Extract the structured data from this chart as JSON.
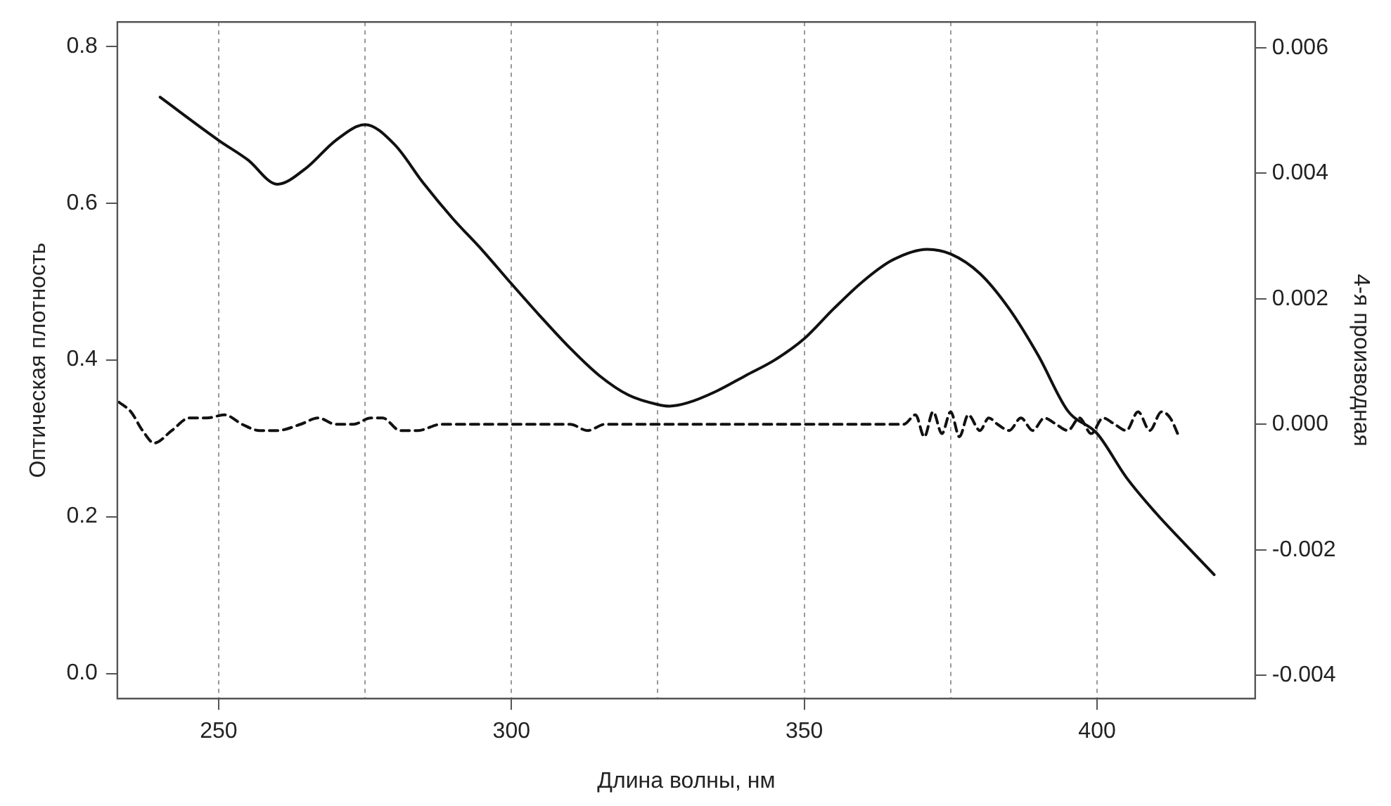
{
  "chart_data": {
    "type": "line",
    "xlabel": "Длина волны, нм",
    "ylabel": "Оптическая плотность",
    "y2label": "4-я производная",
    "xlim": [
      232.7,
      427
    ],
    "xticks": [
      250,
      {
        "value": 275,
        "label": null
      },
      300,
      {
        "value": 325,
        "label": null
      },
      350,
      {
        "value": 375,
        "label": null
      },
      400
    ],
    "ylim": [
      -0.032,
      0.831
    ],
    "yticks": [
      {
        "value": 0,
        "label": "0.0"
      },
      0.2,
      0.4,
      0.6,
      0.8
    ],
    "y2lim": [
      -0.00437,
      0.00641
    ],
    "y2ticks": [
      -0.004,
      -0.002,
      {
        "value": 0,
        "label": "0.000"
      },
      0.002,
      0.004,
      0.006
    ],
    "grid": "x",
    "legend": false,
    "marker": "none",
    "series": [
      {
        "color": "#111111",
        "line_style": "solid",
        "x": [
          240,
          250,
          255,
          260,
          265,
          270,
          275,
          280,
          285,
          290,
          295,
          300,
          305,
          310,
          315,
          320,
          325,
          327,
          330,
          335,
          340,
          345,
          350,
          355,
          360,
          365,
          371,
          375,
          380,
          385,
          390,
          395,
          400,
          405,
          410,
          415,
          420
        ],
        "values": [
          0.735,
          0.68,
          0.655,
          0.624,
          0.645,
          0.68,
          0.7,
          0.675,
          0.625,
          0.58,
          0.54,
          0.497,
          0.455,
          0.415,
          0.38,
          0.355,
          0.343,
          0.341,
          0.345,
          0.36,
          0.38,
          0.4,
          0.427,
          0.465,
          0.5,
          0.527,
          0.541,
          0.535,
          0.51,
          0.465,
          0.405,
          0.335,
          0.306,
          0.25,
          0.205,
          0.165,
          0.126
        ]
      },
      {
        "color": "#111111",
        "line_style": "dashed",
        "axis": "y2",
        "x": [
          233,
          235,
          237,
          239,
          242,
          245,
          248,
          251,
          254,
          257,
          260,
          264,
          267,
          270,
          273,
          276,
          278,
          281,
          284,
          288,
          292,
          297,
          302,
          306,
          310,
          313,
          316,
          320,
          325,
          330,
          340,
          350,
          360,
          365,
          367,
          369,
          370.5,
          372,
          373.5,
          375,
          376.5,
          378,
          380,
          381.5,
          383,
          385,
          387,
          389,
          391,
          393,
          395,
          397,
          399,
          401,
          403,
          405,
          407,
          409,
          411,
          412.5,
          414
        ],
        "values": [
          0.00035,
          0.0002,
          -0.0001,
          -0.0003,
          -0.0001,
          0.0001,
          0.0001,
          0.00015,
          0,
          -0.0001,
          -0.0001,
          0,
          0.0001,
          0,
          0,
          0.0001,
          0.0001,
          -0.0001,
          -0.0001,
          0,
          0,
          0,
          0,
          0,
          0,
          -0.0001,
          0,
          0,
          0,
          0,
          0,
          0,
          0,
          0,
          0,
          0.00015,
          -0.0002,
          0.0002,
          -0.00015,
          0.0002,
          -0.0002,
          0.00015,
          -0.0001,
          0.0001,
          0,
          -0.0001,
          0.0001,
          -0.0001,
          0.0001,
          0,
          -0.0001,
          0.0001,
          -0.00015,
          0.0001,
          0,
          -0.0001,
          0.0002,
          -0.0001,
          0.0002,
          0.0001,
          -0.0002
        ]
      }
    ]
  }
}
